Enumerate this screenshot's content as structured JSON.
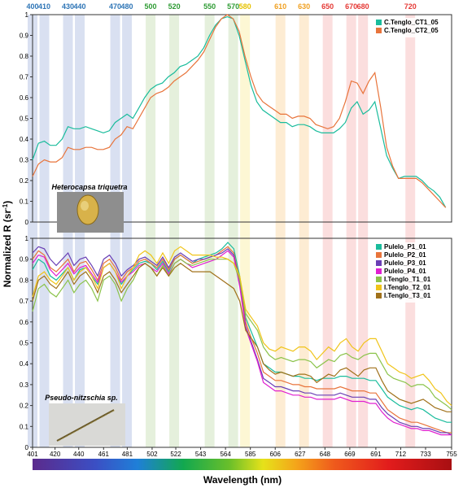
{
  "figure": {
    "ylabel_main": "Normalized R (sr",
    "ylabel_sup": "-1",
    "ylabel_close": ")",
    "xlabel": "Wavelength (nm)"
  },
  "bands": [
    {
      "label": "400",
      "nm": 400,
      "color": "#b9c7e6",
      "text_color": "#2e75b6"
    },
    {
      "label": "410",
      "nm": 410,
      "color": "#b9c7e6",
      "text_color": "#2e75b6"
    },
    {
      "label": "430",
      "nm": 430,
      "color": "#b9c7e6",
      "text_color": "#2e75b6"
    },
    {
      "label": "440",
      "nm": 440,
      "color": "#b9c7e6",
      "text_color": "#2e75b6"
    },
    {
      "label": "470",
      "nm": 470,
      "color": "#b9c7e6",
      "text_color": "#2e75b6"
    },
    {
      "label": "480",
      "nm": 480,
      "color": "#b9c7e6",
      "text_color": "#2e75b6"
    },
    {
      "label": "500",
      "nm": 500,
      "color": "#cfe3c0",
      "text_color": "#2e9b33"
    },
    {
      "label": "520",
      "nm": 520,
      "color": "#cfe3c0",
      "text_color": "#2e9b33"
    },
    {
      "label": "550",
      "nm": 550,
      "color": "#cfe3c0",
      "text_color": "#2e9b33"
    },
    {
      "label": "570",
      "nm": 570,
      "color": "#cfe3c0",
      "text_color": "#2e9b33"
    },
    {
      "label": "580",
      "nm": 580,
      "color": "#fbf1b0",
      "text_color": "#e6c200"
    },
    {
      "label": "610",
      "nm": 610,
      "color": "#fbdcae",
      "text_color": "#f0a020"
    },
    {
      "label": "630",
      "nm": 630,
      "color": "#fbdcae",
      "text_color": "#f0a020"
    },
    {
      "label": "650",
      "nm": 650,
      "color": "#f8c3c3",
      "text_color": "#e53935"
    },
    {
      "label": "670",
      "nm": 670,
      "color": "#f8c3c3",
      "text_color": "#e53935"
    },
    {
      "label": "680",
      "nm": 680,
      "color": "#f8c3c3",
      "text_color": "#e53935"
    },
    {
      "label": "720",
      "nm": 720,
      "color": "#f8c3c3",
      "text_color": "#e53935"
    }
  ],
  "insets": [
    {
      "caption": "Heterocapsa triquetra"
    },
    {
      "caption": "Pseudo-nitzschia sp."
    }
  ],
  "chart_data": [
    {
      "type": "line",
      "xlabel": "Wavelength (nm)",
      "ylabel": "Normalized R (sr-1)",
      "xlim": [
        400,
        755
      ],
      "ylim": [
        0,
        1
      ],
      "y_ticks": [
        0,
        0.1,
        0.2,
        0.3,
        0.4,
        0.5,
        0.6,
        0.7,
        0.8,
        0.9,
        1
      ],
      "y_tick_labels": [
        "0",
        "0.1",
        "0.2",
        "0.3",
        "0.4",
        "0.5",
        "0.6",
        "0.7",
        "0.8",
        "0.9",
        "1"
      ],
      "legend_position": "top-right",
      "x": [
        400,
        405,
        410,
        415,
        420,
        425,
        430,
        435,
        440,
        445,
        450,
        455,
        460,
        465,
        470,
        475,
        480,
        485,
        490,
        495,
        500,
        505,
        510,
        515,
        520,
        525,
        530,
        535,
        540,
        545,
        550,
        555,
        560,
        565,
        570,
        575,
        580,
        585,
        590,
        595,
        600,
        605,
        610,
        615,
        620,
        625,
        630,
        635,
        640,
        645,
        650,
        655,
        660,
        665,
        670,
        675,
        680,
        685,
        690,
        695,
        700,
        705,
        710,
        715,
        720,
        725,
        730,
        735,
        740,
        745,
        750
      ],
      "series": [
        {
          "name": "C.Tenglo_CT1_05",
          "color": "#1abc9c",
          "values": [
            0.3,
            0.38,
            0.39,
            0.37,
            0.37,
            0.4,
            0.46,
            0.45,
            0.45,
            0.46,
            0.45,
            0.44,
            0.43,
            0.44,
            0.48,
            0.5,
            0.52,
            0.5,
            0.55,
            0.6,
            0.64,
            0.66,
            0.67,
            0.7,
            0.72,
            0.75,
            0.76,
            0.78,
            0.8,
            0.84,
            0.9,
            0.95,
            0.98,
            0.99,
            0.98,
            0.9,
            0.78,
            0.66,
            0.58,
            0.54,
            0.52,
            0.5,
            0.48,
            0.48,
            0.46,
            0.47,
            0.47,
            0.46,
            0.44,
            0.43,
            0.43,
            0.43,
            0.45,
            0.48,
            0.55,
            0.58,
            0.52,
            0.54,
            0.58,
            0.45,
            0.32,
            0.26,
            0.21,
            0.22,
            0.22,
            0.22,
            0.2,
            0.17,
            0.15,
            0.12,
            0.07
          ]
        },
        {
          "name": "C.Tenglo_CT2_05",
          "color": "#e8743b",
          "values": [
            0.22,
            0.28,
            0.3,
            0.29,
            0.29,
            0.31,
            0.36,
            0.35,
            0.35,
            0.36,
            0.36,
            0.35,
            0.35,
            0.36,
            0.4,
            0.42,
            0.46,
            0.45,
            0.5,
            0.55,
            0.6,
            0.62,
            0.63,
            0.65,
            0.68,
            0.7,
            0.72,
            0.75,
            0.78,
            0.82,
            0.88,
            0.94,
            0.98,
            1,
            0.98,
            0.92,
            0.8,
            0.7,
            0.62,
            0.58,
            0.56,
            0.54,
            0.52,
            0.52,
            0.5,
            0.51,
            0.51,
            0.5,
            0.47,
            0.46,
            0.45,
            0.46,
            0.5,
            0.58,
            0.68,
            0.67,
            0.62,
            0.68,
            0.72,
            0.55,
            0.36,
            0.27,
            0.21,
            0.21,
            0.21,
            0.21,
            0.19,
            0.16,
            0.13,
            0.1,
            0.07
          ]
        }
      ]
    },
    {
      "type": "line",
      "xlabel": "Wavelength (nm)",
      "ylabel": "Normalized R (sr-1)",
      "xlim": [
        401,
        755
      ],
      "ylim": [
        0,
        1
      ],
      "x_ticks": [
        401,
        420,
        440,
        461,
        481,
        502,
        522,
        543,
        564,
        585,
        606,
        627,
        648,
        669,
        691,
        712,
        733,
        755
      ],
      "y_ticks": [
        0,
        0.1,
        0.2,
        0.3,
        0.4,
        0.5,
        0.6,
        0.7,
        0.8,
        0.9,
        1
      ],
      "y_tick_labels": [
        "0",
        "0.1",
        "0.2",
        "0.3",
        "0.4",
        "0.5",
        "0.6",
        "0.7",
        "0.8",
        "0.9",
        "1"
      ],
      "legend_position": "top-right",
      "x": [
        401,
        406,
        411,
        416,
        421,
        426,
        431,
        436,
        441,
        446,
        451,
        456,
        461,
        466,
        471,
        476,
        481,
        486,
        491,
        496,
        501,
        506,
        511,
        516,
        521,
        526,
        531,
        536,
        541,
        546,
        551,
        556,
        561,
        566,
        571,
        576,
        581,
        586,
        591,
        596,
        601,
        606,
        611,
        616,
        621,
        626,
        631,
        636,
        641,
        646,
        651,
        656,
        661,
        666,
        671,
        676,
        681,
        686,
        691,
        696,
        701,
        706,
        711,
        716,
        721,
        726,
        731,
        736,
        741,
        746,
        751,
        755
      ],
      "series": [
        {
          "name": "Pulelo_P1_01",
          "color": "#1abc9c",
          "values": [
            0.85,
            0.9,
            0.88,
            0.82,
            0.8,
            0.83,
            0.86,
            0.8,
            0.85,
            0.86,
            0.82,
            0.78,
            0.86,
            0.88,
            0.84,
            0.78,
            0.82,
            0.85,
            0.88,
            0.89,
            0.88,
            0.85,
            0.89,
            0.84,
            0.9,
            0.92,
            0.9,
            0.88,
            0.9,
            0.91,
            0.92,
            0.93,
            0.95,
            0.98,
            0.95,
            0.82,
            0.62,
            0.55,
            0.48,
            0.4,
            0.38,
            0.36,
            0.36,
            0.35,
            0.34,
            0.34,
            0.33,
            0.33,
            0.32,
            0.33,
            0.33,
            0.33,
            0.34,
            0.34,
            0.33,
            0.33,
            0.33,
            0.32,
            0.32,
            0.28,
            0.24,
            0.22,
            0.2,
            0.19,
            0.18,
            0.19,
            0.18,
            0.16,
            0.14,
            0.13,
            0.12,
            0.12
          ]
        },
        {
          "name": "Pulelo_P2_01",
          "color": "#e8743b",
          "values": [
            0.9,
            0.94,
            0.92,
            0.86,
            0.84,
            0.87,
            0.9,
            0.84,
            0.88,
            0.89,
            0.85,
            0.8,
            0.88,
            0.9,
            0.86,
            0.8,
            0.84,
            0.86,
            0.89,
            0.9,
            0.88,
            0.86,
            0.9,
            0.85,
            0.9,
            0.92,
            0.9,
            0.88,
            0.89,
            0.9,
            0.91,
            0.92,
            0.94,
            0.96,
            0.93,
            0.8,
            0.6,
            0.52,
            0.45,
            0.36,
            0.34,
            0.32,
            0.32,
            0.31,
            0.3,
            0.3,
            0.29,
            0.29,
            0.28,
            0.28,
            0.28,
            0.28,
            0.29,
            0.28,
            0.27,
            0.27,
            0.27,
            0.26,
            0.26,
            0.22,
            0.18,
            0.16,
            0.14,
            0.13,
            0.12,
            0.12,
            0.11,
            0.1,
            0.09,
            0.08,
            0.07,
            0.07
          ]
        },
        {
          "name": "Pulelo_P3_01",
          "color": "#6a3fb5",
          "values": [
            0.93,
            0.96,
            0.95,
            0.9,
            0.87,
            0.9,
            0.93,
            0.87,
            0.9,
            0.91,
            0.87,
            0.82,
            0.9,
            0.92,
            0.88,
            0.82,
            0.85,
            0.87,
            0.9,
            0.91,
            0.89,
            0.87,
            0.91,
            0.86,
            0.91,
            0.93,
            0.91,
            0.89,
            0.9,
            0.9,
            0.91,
            0.92,
            0.93,
            0.95,
            0.92,
            0.78,
            0.58,
            0.5,
            0.42,
            0.33,
            0.31,
            0.29,
            0.29,
            0.28,
            0.27,
            0.27,
            0.26,
            0.26,
            0.25,
            0.25,
            0.25,
            0.25,
            0.26,
            0.25,
            0.24,
            0.24,
            0.24,
            0.23,
            0.23,
            0.19,
            0.16,
            0.14,
            0.12,
            0.11,
            0.1,
            0.1,
            0.09,
            0.09,
            0.08,
            0.07,
            0.07,
            0.06
          ]
        },
        {
          "name": "Pulelo_P4_01",
          "color": "#e020d0",
          "values": [
            0.88,
            0.92,
            0.91,
            0.85,
            0.82,
            0.85,
            0.88,
            0.83,
            0.86,
            0.87,
            0.83,
            0.79,
            0.86,
            0.88,
            0.84,
            0.79,
            0.82,
            0.84,
            0.87,
            0.88,
            0.86,
            0.84,
            0.88,
            0.83,
            0.88,
            0.9,
            0.88,
            0.86,
            0.87,
            0.88,
            0.89,
            0.9,
            0.92,
            0.94,
            0.91,
            0.77,
            0.57,
            0.49,
            0.41,
            0.31,
            0.29,
            0.27,
            0.27,
            0.26,
            0.25,
            0.25,
            0.24,
            0.24,
            0.23,
            0.23,
            0.23,
            0.23,
            0.24,
            0.23,
            0.22,
            0.22,
            0.22,
            0.21,
            0.21,
            0.17,
            0.14,
            0.12,
            0.11,
            0.1,
            0.09,
            0.09,
            0.08,
            0.08,
            0.07,
            0.06,
            0.06,
            0.06
          ]
        },
        {
          "name": "I.Tenglo_T1_01",
          "color": "#8bc34a",
          "values": [
            0.65,
            0.76,
            0.78,
            0.74,
            0.72,
            0.76,
            0.8,
            0.74,
            0.78,
            0.8,
            0.76,
            0.7,
            0.8,
            0.82,
            0.78,
            0.7,
            0.76,
            0.8,
            0.86,
            0.88,
            0.86,
            0.82,
            0.87,
            0.82,
            0.88,
            0.9,
            0.88,
            0.87,
            0.88,
            0.89,
            0.9,
            0.9,
            0.9,
            0.9,
            0.88,
            0.8,
            0.64,
            0.6,
            0.56,
            0.48,
            0.44,
            0.42,
            0.43,
            0.42,
            0.41,
            0.42,
            0.42,
            0.41,
            0.38,
            0.4,
            0.42,
            0.41,
            0.44,
            0.45,
            0.43,
            0.42,
            0.44,
            0.45,
            0.45,
            0.4,
            0.35,
            0.33,
            0.32,
            0.31,
            0.29,
            0.3,
            0.3,
            0.28,
            0.24,
            0.22,
            0.2,
            0.18
          ]
        },
        {
          "name": "I.Tenglo_T2_01",
          "color": "#f0c419",
          "values": [
            0.72,
            0.82,
            0.84,
            0.8,
            0.78,
            0.82,
            0.86,
            0.8,
            0.84,
            0.86,
            0.82,
            0.76,
            0.86,
            0.88,
            0.84,
            0.76,
            0.82,
            0.86,
            0.92,
            0.94,
            0.92,
            0.88,
            0.93,
            0.88,
            0.94,
            0.96,
            0.94,
            0.92,
            0.92,
            0.92,
            0.92,
            0.91,
            0.91,
            0.9,
            0.88,
            0.82,
            0.66,
            0.62,
            0.58,
            0.5,
            0.47,
            0.46,
            0.48,
            0.47,
            0.46,
            0.48,
            0.48,
            0.46,
            0.42,
            0.45,
            0.48,
            0.46,
            0.5,
            0.52,
            0.48,
            0.46,
            0.5,
            0.52,
            0.52,
            0.46,
            0.4,
            0.38,
            0.36,
            0.35,
            0.33,
            0.34,
            0.35,
            0.32,
            0.28,
            0.26,
            0.22,
            0.2
          ]
        },
        {
          "name": "I.Tenglo_T3_01",
          "color": "#a0711a",
          "values": [
            0.7,
            0.8,
            0.82,
            0.78,
            0.76,
            0.8,
            0.84,
            0.78,
            0.82,
            0.84,
            0.8,
            0.74,
            0.82,
            0.84,
            0.8,
            0.74,
            0.78,
            0.82,
            0.86,
            0.88,
            0.86,
            0.82,
            0.86,
            0.82,
            0.86,
            0.88,
            0.86,
            0.84,
            0.84,
            0.84,
            0.84,
            0.82,
            0.8,
            0.78,
            0.76,
            0.7,
            0.56,
            0.52,
            0.48,
            0.4,
            0.37,
            0.35,
            0.36,
            0.35,
            0.34,
            0.35,
            0.35,
            0.34,
            0.31,
            0.33,
            0.35,
            0.34,
            0.37,
            0.38,
            0.36,
            0.34,
            0.37,
            0.38,
            0.38,
            0.32,
            0.27,
            0.25,
            0.23,
            0.22,
            0.21,
            0.22,
            0.23,
            0.21,
            0.19,
            0.18,
            0.17,
            0.17
          ]
        }
      ]
    }
  ]
}
